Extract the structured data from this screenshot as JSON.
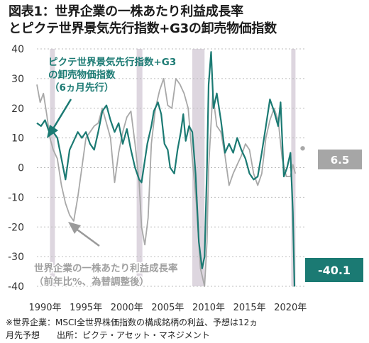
{
  "title_line1": "図表1：世界企業の一株あたり利益成長率",
  "title_line2": "とピクテ世界景気先行指数+G3の卸売物価指数",
  "footnote_line1": "※世界企業：MSCI全世界株価指数の構成銘柄の利益、予想は12ヵ",
  "footnote_line2": "月先予想　　出所：ピクテ・アセット・マネジメント",
  "colors": {
    "series_teal": "#1b7a73",
    "series_gray": "#a8a8a8",
    "recession_band": "#ddd6df",
    "callout_gray": "#a6a6a6",
    "callout_teal": "#1b7a73"
  },
  "chart_data": {
    "type": "line",
    "ylim": [
      -40,
      40
    ],
    "y_ticks": [
      40,
      30,
      20,
      10,
      0,
      -10,
      -20,
      -30,
      -40
    ],
    "x_ticks": [
      1990,
      1995,
      2000,
      2005,
      2010,
      2015,
      2020
    ],
    "x_tick_labels": [
      "1990年",
      "1995年",
      "2000年",
      "2005年",
      "2010年",
      "2015年",
      "2020年"
    ],
    "recession_periods": [
      [
        1990.6,
        1991.2
      ],
      [
        2001.2,
        2001.9
      ],
      [
        2008.0,
        2009.5
      ],
      [
        2020.1,
        2020.4
      ]
    ],
    "series": [
      {
        "name": "ピクテ世界景気先行指数+G3の卸売物価指数（6ヵ月先行）",
        "color": "#1b7a73",
        "points": [
          [
            1989.0,
            15
          ],
          [
            1989.5,
            14
          ],
          [
            1990.0,
            16
          ],
          [
            1990.5,
            12
          ],
          [
            1991.0,
            12
          ],
          [
            1991.5,
            10
          ],
          [
            1992.0,
            3
          ],
          [
            1992.5,
            -4
          ],
          [
            1993.0,
            6
          ],
          [
            1993.5,
            9
          ],
          [
            1994.0,
            12
          ],
          [
            1994.5,
            10
          ],
          [
            1995.0,
            12
          ],
          [
            1995.5,
            8
          ],
          [
            1996.0,
            6
          ],
          [
            1996.5,
            12
          ],
          [
            1997.0,
            19
          ],
          [
            1997.5,
            21
          ],
          [
            1998.0,
            16
          ],
          [
            1998.5,
            12
          ],
          [
            1999.0,
            15
          ],
          [
            1999.5,
            8
          ],
          [
            2000.0,
            13
          ],
          [
            2000.5,
            6
          ],
          [
            2001.0,
            0
          ],
          [
            2001.5,
            -4
          ],
          [
            2001.8,
            -5
          ],
          [
            2002.5,
            8
          ],
          [
            2003.0,
            14
          ],
          [
            2003.3,
            19
          ],
          [
            2003.8,
            22
          ],
          [
            2004.2,
            18
          ],
          [
            2004.6,
            8
          ],
          [
            2005.0,
            6
          ],
          [
            2005.3,
            0
          ],
          [
            2005.8,
            -2
          ],
          [
            2006.2,
            6
          ],
          [
            2006.6,
            12
          ],
          [
            2006.9,
            18
          ],
          [
            2007.2,
            9
          ],
          [
            2007.6,
            14
          ],
          [
            2008.0,
            12
          ],
          [
            2008.4,
            -2
          ],
          [
            2008.8,
            -25
          ],
          [
            2009.2,
            -34
          ],
          [
            2009.5,
            -30
          ],
          [
            2009.8,
            0
          ],
          [
            2010.0,
            28
          ],
          [
            2010.3,
            39
          ],
          [
            2010.6,
            20
          ],
          [
            2011.0,
            25
          ],
          [
            2011.5,
            16
          ],
          [
            2012.0,
            5
          ],
          [
            2012.5,
            8
          ],
          [
            2013.0,
            5
          ],
          [
            2013.5,
            10
          ],
          [
            2014.0,
            6
          ],
          [
            2014.5,
            3
          ],
          [
            2015.0,
            -2
          ],
          [
            2015.5,
            -4
          ],
          [
            2016.0,
            -3
          ],
          [
            2016.5,
            5
          ],
          [
            2017.0,
            14
          ],
          [
            2017.5,
            23
          ],
          [
            2018.0,
            19
          ],
          [
            2018.5,
            14
          ],
          [
            2018.8,
            22
          ],
          [
            2019.2,
            -3
          ],
          [
            2019.6,
            0
          ],
          [
            2020.0,
            5
          ],
          [
            2020.3,
            -15
          ],
          [
            2020.5,
            -40.1
          ]
        ],
        "last_value_label": "-40.1"
      },
      {
        "name": "世界企業の一株あたり利益成長率（前年比%、為替調整後）",
        "color": "#a8a8a8",
        "points": [
          [
            1989.0,
            28
          ],
          [
            1989.4,
            22
          ],
          [
            1989.8,
            25
          ],
          [
            1990.2,
            18
          ],
          [
            1990.6,
            10
          ],
          [
            1991.0,
            6
          ],
          [
            1991.5,
            3
          ],
          [
            1992.0,
            -6
          ],
          [
            1992.5,
            -12
          ],
          [
            1993.0,
            -16
          ],
          [
            1993.5,
            -18
          ],
          [
            1994.0,
            -10
          ],
          [
            1994.5,
            0
          ],
          [
            1995.0,
            10
          ],
          [
            1995.5,
            12
          ],
          [
            1996.0,
            14
          ],
          [
            1996.5,
            15
          ],
          [
            1997.0,
            20
          ],
          [
            1997.5,
            15
          ],
          [
            1998.0,
            10
          ],
          [
            1998.5,
            -5
          ],
          [
            1999.0,
            5
          ],
          [
            1999.5,
            12
          ],
          [
            2000.0,
            17
          ],
          [
            2000.5,
            19
          ],
          [
            2001.0,
            8
          ],
          [
            2001.5,
            -5
          ],
          [
            2001.8,
            -20
          ],
          [
            2002.2,
            -26
          ],
          [
            2002.6,
            -17
          ],
          [
            2003.0,
            8
          ],
          [
            2003.5,
            20
          ],
          [
            2004.0,
            26
          ],
          [
            2004.5,
            30
          ],
          [
            2005.0,
            21
          ],
          [
            2005.5,
            20
          ],
          [
            2006.0,
            30
          ],
          [
            2006.5,
            28
          ],
          [
            2007.0,
            25
          ],
          [
            2007.5,
            20
          ],
          [
            2008.0,
            3
          ],
          [
            2008.5,
            -12
          ],
          [
            2009.0,
            -34
          ],
          [
            2009.5,
            -40
          ],
          [
            2009.8,
            -25
          ],
          [
            2010.0,
            0
          ],
          [
            2010.5,
            25
          ],
          [
            2011.0,
            14
          ],
          [
            2011.5,
            12
          ],
          [
            2012.0,
            4
          ],
          [
            2012.5,
            -6
          ],
          [
            2013.0,
            -2
          ],
          [
            2013.5,
            1
          ],
          [
            2014.0,
            4
          ],
          [
            2014.5,
            8
          ],
          [
            2015.0,
            6
          ],
          [
            2015.5,
            -2
          ],
          [
            2016.0,
            -6
          ],
          [
            2016.5,
            -2
          ],
          [
            2017.0,
            10
          ],
          [
            2017.5,
            16
          ],
          [
            2018.0,
            20
          ],
          [
            2018.5,
            16
          ],
          [
            2019.0,
            3
          ],
          [
            2019.5,
            -3
          ],
          [
            2020.0,
            -3
          ],
          [
            2020.3,
            1
          ],
          [
            2020.6,
            -2
          ]
        ],
        "forecast_point": [
          2021.5,
          6.5
        ],
        "last_value_label": "6.5"
      }
    ],
    "annotations": [
      {
        "text_line1": "ピクテ世界景気先行指数+G3",
        "text_line2": "の卸売物価指数",
        "text_line3": "（6ヵ月先行）"
      },
      {
        "text_line1": "世界企業の一株あたり利益成長率",
        "text_line2": "（前年比%、為替調整後）"
      }
    ]
  }
}
